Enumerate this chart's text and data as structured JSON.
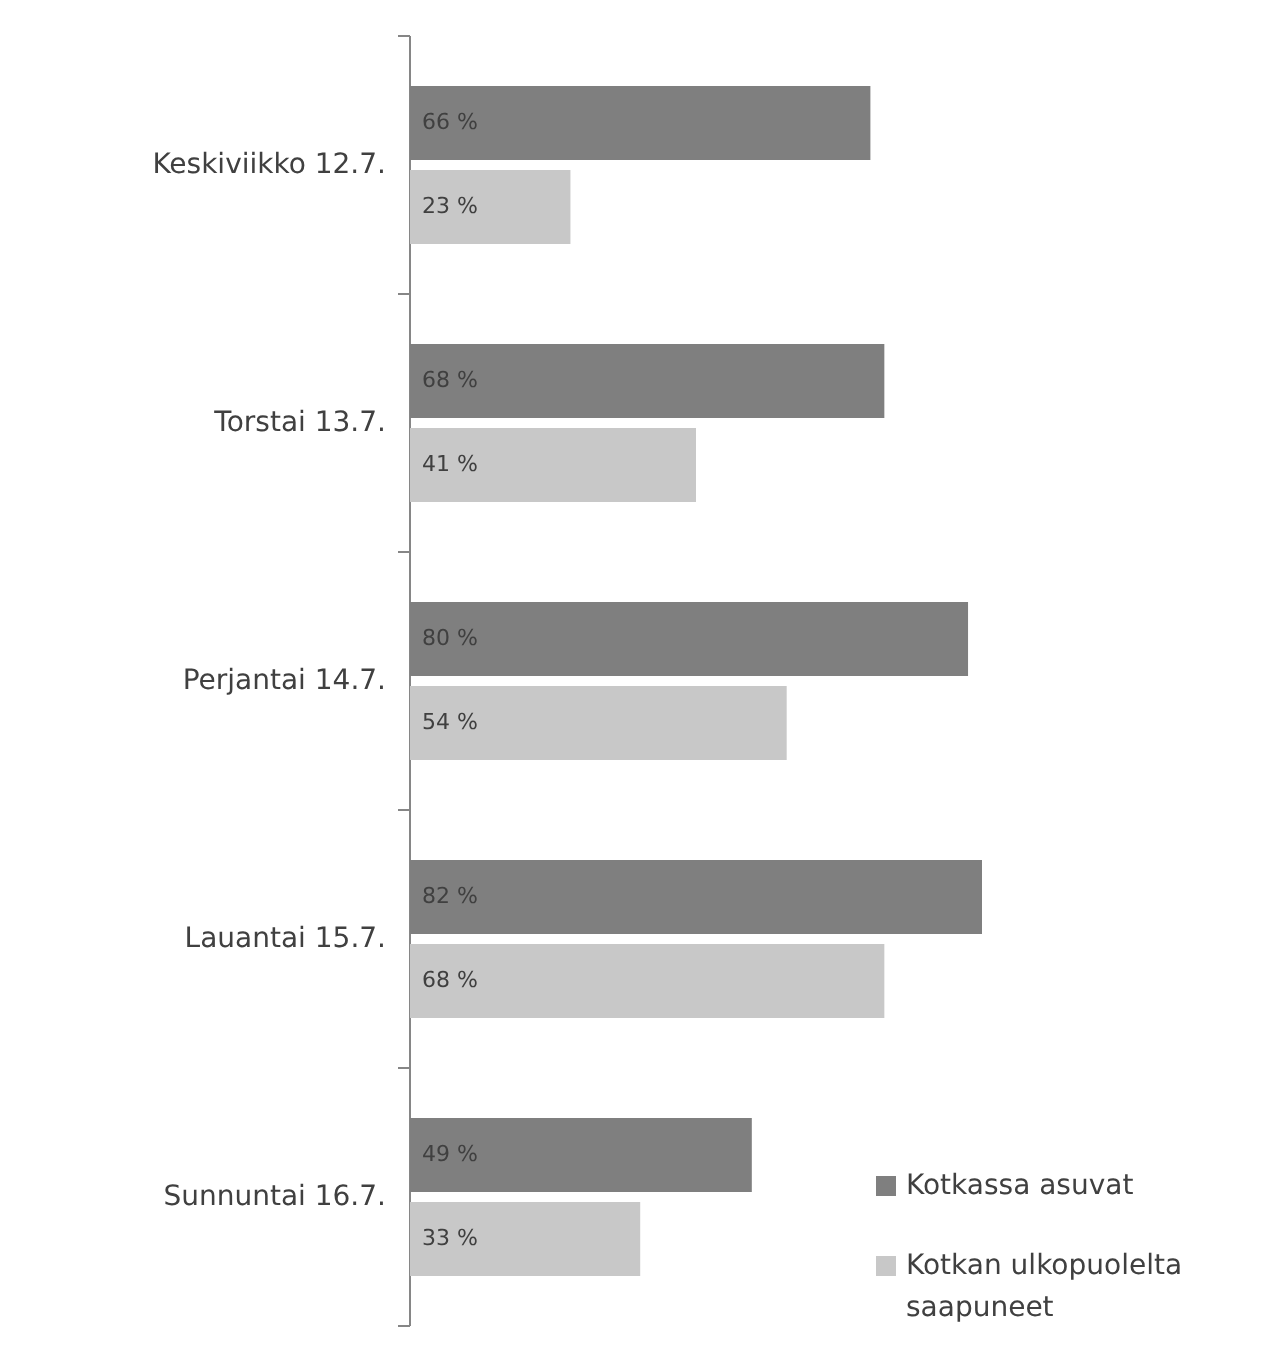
{
  "chart_data": {
    "type": "bar",
    "orientation": "horizontal",
    "categories": [
      "Keskiviikko 12.7.",
      "Torstai 13.7.",
      "Perjantai 14.7.",
      "Lauantai 15.7.",
      "Sunnuntai 16.7."
    ],
    "series": [
      {
        "name": "Kotkassa asuvat",
        "color": "#7f7f7f",
        "values": [
          66,
          68,
          80,
          82,
          49
        ],
        "value_labels": [
          "66 %",
          "68 %",
          "80 %",
          "82 %",
          "49 %"
        ]
      },
      {
        "name": "Kotkan ulkopuolelta saapuneet",
        "color": "#c8c8c8",
        "values": [
          23,
          41,
          54,
          68,
          33
        ],
        "value_labels": [
          "23 %",
          "41 %",
          "54 %",
          "68 %",
          "33 %"
        ]
      }
    ],
    "legend": "bottom right"
  }
}
